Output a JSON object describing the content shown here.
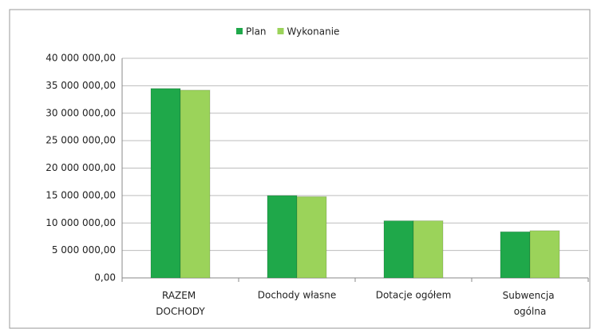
{
  "chart_data": {
    "type": "bar",
    "categories": [
      "RAZEM DOCHODY",
      "Dochody własne",
      "Dotacje ogółem",
      "Subwencja ogólna"
    ],
    "series": [
      {
        "name": "Plan",
        "color": "#1fa84a",
        "values": [
          34500000,
          15000000,
          10400000,
          8400000
        ]
      },
      {
        "name": "Wykonanie",
        "color": "#9bd35a",
        "values": [
          34200000,
          14800000,
          10400000,
          8600000
        ]
      }
    ],
    "ylim": [
      0,
      40000000
    ],
    "yticks": [
      {
        "value": 0,
        "label": "0,00"
      },
      {
        "value": 5000000,
        "label": "5 000 000,00"
      },
      {
        "value": 10000000,
        "label": "10 000 000,00"
      },
      {
        "value": 15000000,
        "label": "15 000 000,00"
      },
      {
        "value": 20000000,
        "label": "20 000 000,00"
      },
      {
        "value": 25000000,
        "label": "25 000 000,00"
      },
      {
        "value": 30000000,
        "label": "30 000 000,00"
      },
      {
        "value": 35000000,
        "label": "35 000 000,00"
      },
      {
        "value": 40000000,
        "label": "40 000 000,00"
      }
    ],
    "grid": true,
    "legend": "top"
  }
}
